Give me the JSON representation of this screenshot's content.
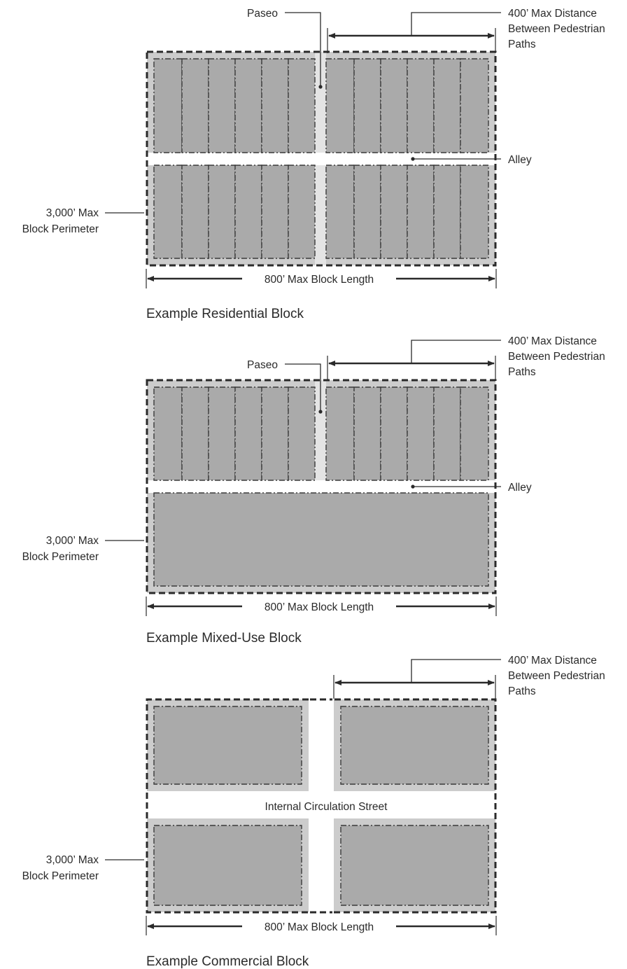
{
  "residential": {
    "paseo": "Paseo",
    "distance_line1": "400’ Max Distance",
    "distance_line2": "Between Pedestrian",
    "distance_line3": "Paths",
    "alley": "Alley",
    "perimeter_line1": "3,000’ Max",
    "perimeter_line2": "Block Perimeter",
    "length": "800’ Max Block Length",
    "caption": "Example Residential Block"
  },
  "mixed_use": {
    "paseo": "Paseo",
    "distance_line1": "400’ Max Distance",
    "distance_line2": "Between Pedestrian",
    "distance_line3": "Paths",
    "alley": "Alley",
    "perimeter_line1": "3,000’ Max",
    "perimeter_line2": "Block Perimeter",
    "length": "800’ Max Block Length",
    "caption": "Example Mixed-Use Block"
  },
  "commercial": {
    "distance_line1": "400’ Max Distance",
    "distance_line2": "Between Pedestrian",
    "distance_line3": "Paths",
    "street": "Internal Circulation Street",
    "perimeter_line1": "3,000’ Max",
    "perimeter_line2": "Block Perimeter",
    "length": "800’ Max Block Length",
    "caption": "Example Commercial Block"
  },
  "colors": {
    "lot_fill": "#aaaaaa",
    "block_fill": "#cccccc",
    "line": "#2a2a2a",
    "background": "#ffffff"
  }
}
